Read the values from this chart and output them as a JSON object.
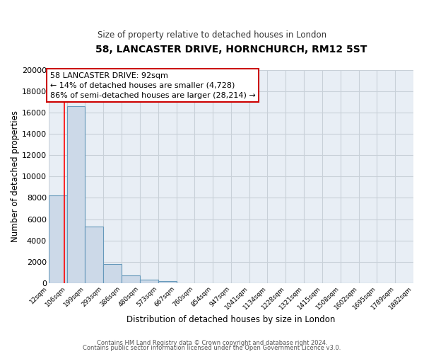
{
  "title": "58, LANCASTER DRIVE, HORNCHURCH, RM12 5ST",
  "subtitle": "Size of property relative to detached houses in London",
  "xlabel": "Distribution of detached houses by size in London",
  "ylabel": "Number of detached properties",
  "bar_edges": [
    12,
    106,
    199,
    293,
    386,
    480,
    573,
    667,
    760,
    854,
    947,
    1041,
    1134,
    1228,
    1321,
    1415,
    1508,
    1602,
    1695,
    1789,
    1882
  ],
  "bar_heights": [
    8200,
    16600,
    5300,
    1800,
    750,
    300,
    200,
    0,
    0,
    0,
    0,
    0,
    0,
    0,
    0,
    0,
    0,
    0,
    0,
    0
  ],
  "bar_color": "#ccd9e8",
  "bar_edge_color": "#6699bb",
  "red_line_x": 92,
  "annotation_title": "58 LANCASTER DRIVE: 92sqm",
  "annotation_line1": "← 14% of detached houses are smaller (4,728)",
  "annotation_line2": "86% of semi-detached houses are larger (28,214) →",
  "ylim": [
    0,
    20000
  ],
  "yticks": [
    0,
    2000,
    4000,
    6000,
    8000,
    10000,
    12000,
    14000,
    16000,
    18000,
    20000
  ],
  "xtick_labels": [
    "12sqm",
    "106sqm",
    "199sqm",
    "293sqm",
    "386sqm",
    "480sqm",
    "573sqm",
    "667sqm",
    "760sqm",
    "854sqm",
    "947sqm",
    "1041sqm",
    "1134sqm",
    "1228sqm",
    "1321sqm",
    "1415sqm",
    "1508sqm",
    "1602sqm",
    "1695sqm",
    "1789sqm",
    "1882sqm"
  ],
  "footer_line1": "Contains HM Land Registry data © Crown copyright and database right 2024.",
  "footer_line2": "Contains public sector information licensed under the Open Government Licence v3.0.",
  "background_color": "#ffffff",
  "plot_bg_color": "#e8eef5",
  "grid_color": "#c8d0d8",
  "annotation_box_color": "#ffffff",
  "annotation_box_edge": "#cc0000"
}
